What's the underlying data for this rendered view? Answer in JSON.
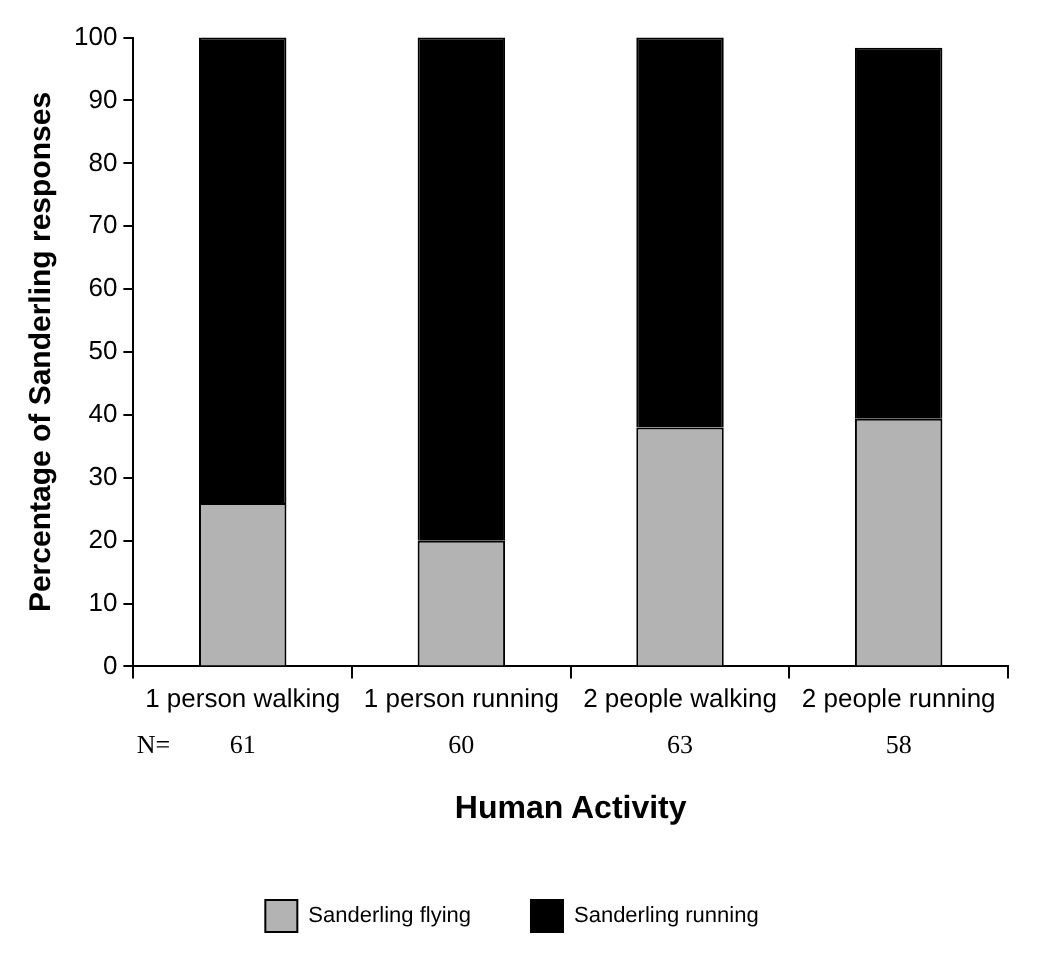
{
  "chart_data": {
    "type": "bar",
    "stacked": true,
    "xlabel": "Human Activity",
    "ylabel": "Percentage of Sanderling responses",
    "categories": [
      "1 person walking",
      "1 person running",
      "2 people walking",
      "2 people running"
    ],
    "series": [
      {
        "name": "Sanderling flying",
        "color": "#b3b3b3",
        "values": [
          26,
          20,
          38,
          39.4
        ]
      },
      {
        "name": "Sanderling running",
        "color": "#000000",
        "values": [
          74,
          80,
          62,
          59
        ]
      }
    ],
    "ylim": [
      0,
      100
    ],
    "yticks": [
      0,
      10,
      20,
      30,
      40,
      50,
      60,
      70,
      80,
      90,
      100
    ],
    "grid": false,
    "legend": "bottom",
    "annotations": [
      "N=",
      "61",
      "60",
      "63",
      "58"
    ]
  }
}
